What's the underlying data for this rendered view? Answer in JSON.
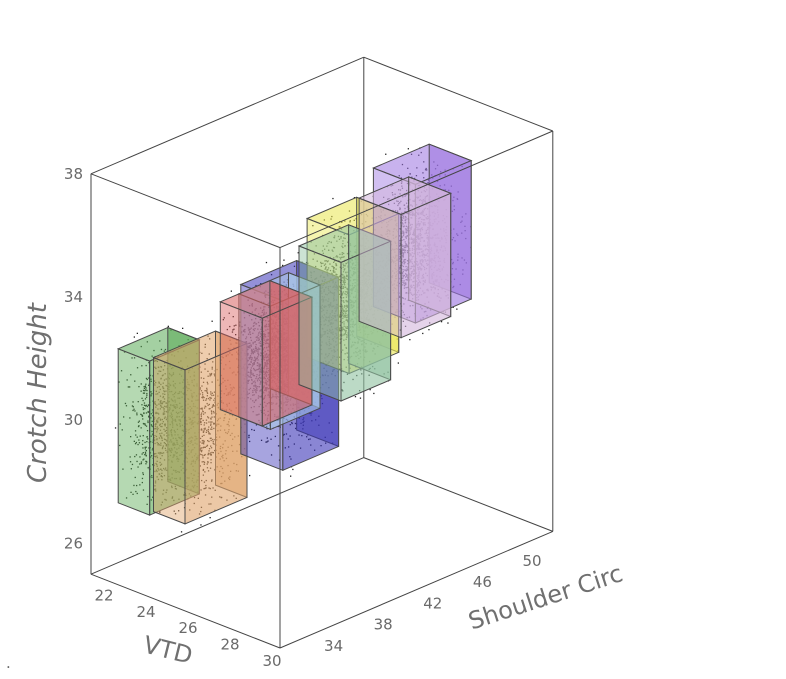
{
  "chart_data": {
    "type": "scatter",
    "subtype": "3d-scatter-with-boxes",
    "title": "",
    "axes": {
      "x": {
        "label": "Shoulder Circ",
        "ticks": [
          "34",
          "38",
          "42",
          "46",
          "50"
        ],
        "range": [
          30,
          52
        ]
      },
      "y": {
        "label": "VTD",
        "ticks": [
          "22",
          "24",
          "26",
          "28",
          "30"
        ],
        "range": [
          21,
          30
        ]
      },
      "z": {
        "label": "Crotch Height",
        "ticks": [
          "26",
          "30",
          "34",
          "38"
        ],
        "range": [
          25,
          38
        ]
      }
    },
    "boxes": [
      {
        "color": "#5aaa55",
        "shoulder": [
          30.5,
          34.5
        ],
        "vtd": [
          22.0,
          23.5
        ],
        "crotch": [
          27.5,
          32.5
        ]
      },
      {
        "color": "#e0a46a",
        "shoulder": [
          32.5,
          37.5
        ],
        "vtd": [
          22.5,
          24.0
        ],
        "crotch": [
          27.0,
          32.0
        ]
      },
      {
        "color": "#d96060",
        "shoulder": [
          34.5,
          38.5
        ],
        "vtd": [
          24.5,
          26.5
        ],
        "crotch": [
          30.5,
          34.0
        ]
      },
      {
        "color": "#a9c9e8",
        "shoulder": [
          36.0,
          40.0
        ],
        "vtd": [
          24.5,
          26.0
        ],
        "crotch": [
          30.0,
          34.0
        ]
      },
      {
        "color": "#3c36b8",
        "shoulder": [
          37.0,
          41.5
        ],
        "vtd": [
          24.0,
          26.0
        ],
        "crotch": [
          28.5,
          34.0
        ]
      },
      {
        "color": "#8fc2a0",
        "shoulder": [
          40.0,
          44.0
        ],
        "vtd": [
          25.0,
          27.0
        ],
        "crotch": [
          30.5,
          35.0
        ]
      },
      {
        "color": "#e9e64e",
        "shoulder": [
          41.5,
          45.5
        ],
        "vtd": [
          24.5,
          26.5
        ],
        "crotch": [
          31.0,
          35.5
        ]
      },
      {
        "color": "#d4b6dc",
        "shoulder": [
          44.0,
          48.0
        ],
        "vtd": [
          25.5,
          27.5
        ],
        "crotch": [
          32.0,
          36.0
        ]
      },
      {
        "color": "#9a72e0",
        "shoulder": [
          46.0,
          50.5
        ],
        "vtd": [
          25.0,
          27.0
        ],
        "crotch": [
          32.0,
          36.5
        ]
      }
    ],
    "points": {
      "color": "#222222",
      "description_count": 6000
    },
    "grid": false
  },
  "labels": {
    "corner_mark": "."
  }
}
